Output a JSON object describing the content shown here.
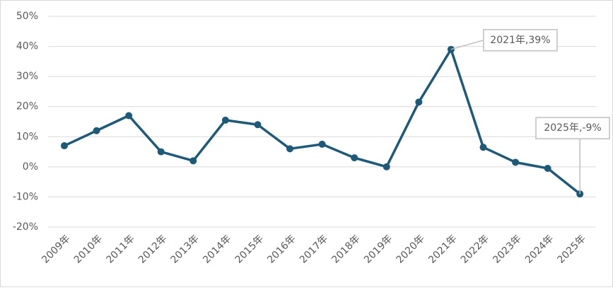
{
  "chart_data": {
    "type": "line",
    "categories": [
      "2009年",
      "2010年",
      "2011年",
      "2012年",
      "2013年",
      "2014年",
      "2015年",
      "2016年",
      "2017年",
      "2018年",
      "2019年",
      "2020年",
      "2021年",
      "2022年",
      "2023年",
      "2024年",
      "2025年"
    ],
    "values": [
      7,
      12,
      17,
      5,
      2,
      15.5,
      14,
      6,
      7.5,
      3,
      0,
      21.5,
      39,
      6.5,
      1.5,
      -0.5,
      -9
    ],
    "value_labels": [
      null,
      null,
      null,
      null,
      null,
      null,
      null,
      null,
      null,
      null,
      null,
      null,
      "2021年,39%",
      null,
      null,
      null,
      "2025年,-9%"
    ],
    "color": "#1d5a79",
    "ylim": [
      -20,
      50
    ],
    "yticks": [
      {
        "value": -20,
        "label": "-20%"
      },
      {
        "value": -10,
        "label": "-10%"
      },
      {
        "value": 0,
        "label": "0%"
      },
      {
        "value": 10,
        "label": "10%"
      },
      {
        "value": 20,
        "label": "20%"
      },
      {
        "value": 30,
        "label": "30%"
      },
      {
        "value": 40,
        "label": "40%"
      },
      {
        "value": 50,
        "label": "50%"
      }
    ],
    "grid": true
  }
}
